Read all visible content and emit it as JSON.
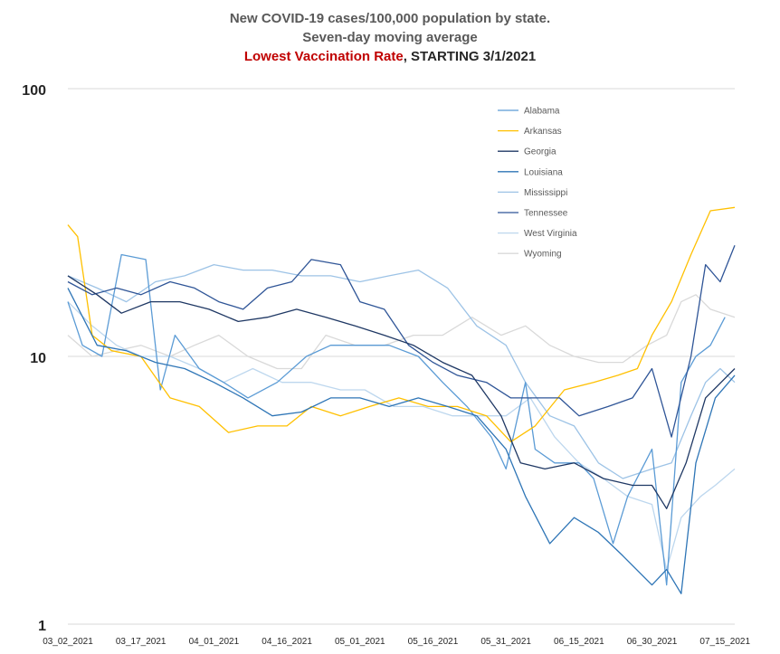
{
  "chart_data": {
    "type": "line",
    "title_line1": "New COVID-19 cases/100,000 population by state.",
    "title_line2": "Seven-day moving average",
    "title_line3_red": "Lowest Vaccination Rate",
    "title_line3_rest": ", STARTING 3/1/2021",
    "y_scale": "log",
    "ylim": [
      1,
      100
    ],
    "y_ticks": [
      "100",
      "10",
      "1"
    ],
    "y_tick_values": [
      100,
      10,
      1
    ],
    "x_start": "03_02_2021",
    "x_end": "07_17_2021",
    "x_tick_labels": [
      "03_02_2021",
      "03_17_2021",
      "04_01_2021",
      "04_16_2021",
      "05_01_2021",
      "05_16_2021",
      "05_31_2021",
      "06_15_2021",
      "06_30_2021",
      "07_15_2021"
    ],
    "x_tick_dates": [
      "2021-03-02",
      "2021-03-17",
      "2021-04-01",
      "2021-04-16",
      "2021-05-01",
      "2021-05-16",
      "2021-05-31",
      "2021-06-15",
      "2021-06-30",
      "2021-07-15"
    ],
    "grid": "horizontal",
    "legend_position": "top-right",
    "series": [
      {
        "name": "Alabama",
        "color": "#5b9bd5",
        "points": [
          [
            "2021-03-02",
            16
          ],
          [
            "2021-03-05",
            11
          ],
          [
            "2021-03-09",
            10
          ],
          [
            "2021-03-13",
            24
          ],
          [
            "2021-03-18",
            23
          ],
          [
            "2021-03-21",
            7.5
          ],
          [
            "2021-03-24",
            12
          ],
          [
            "2021-03-29",
            9
          ],
          [
            "2021-04-03",
            8
          ],
          [
            "2021-04-08",
            7
          ],
          [
            "2021-04-14",
            8
          ],
          [
            "2021-04-20",
            10
          ],
          [
            "2021-04-25",
            11
          ],
          [
            "2021-05-01",
            11
          ],
          [
            "2021-05-07",
            11
          ],
          [
            "2021-05-13",
            10
          ],
          [
            "2021-05-18",
            8
          ],
          [
            "2021-05-23",
            6.5
          ],
          [
            "2021-05-28",
            5
          ],
          [
            "2021-05-31",
            3.8
          ],
          [
            "2021-06-04",
            8
          ],
          [
            "2021-06-06",
            4.5
          ],
          [
            "2021-06-10",
            4
          ],
          [
            "2021-06-15",
            4
          ],
          [
            "2021-06-18",
            3.5
          ],
          [
            "2021-06-22",
            2
          ],
          [
            "2021-06-25",
            3
          ],
          [
            "2021-06-30",
            4.5
          ],
          [
            "2021-07-03",
            1.4
          ],
          [
            "2021-07-06",
            8
          ],
          [
            "2021-07-09",
            10
          ],
          [
            "2021-07-12",
            11
          ],
          [
            "2021-07-15",
            14
          ]
        ]
      },
      {
        "name": "Arkansas",
        "color": "#ffc000",
        "points": [
          [
            "2021-03-02",
            31
          ],
          [
            "2021-03-04",
            28
          ],
          [
            "2021-03-07",
            12
          ],
          [
            "2021-03-11",
            10.5
          ],
          [
            "2021-03-17",
            10
          ],
          [
            "2021-03-23",
            7
          ],
          [
            "2021-03-29",
            6.5
          ],
          [
            "2021-04-04",
            5.2
          ],
          [
            "2021-04-10",
            5.5
          ],
          [
            "2021-04-16",
            5.5
          ],
          [
            "2021-04-21",
            6.5
          ],
          [
            "2021-04-27",
            6
          ],
          [
            "2021-05-03",
            6.5
          ],
          [
            "2021-05-09",
            7
          ],
          [
            "2021-05-15",
            6.5
          ],
          [
            "2021-05-21",
            6.5
          ],
          [
            "2021-05-27",
            6
          ],
          [
            "2021-06-01",
            4.8
          ],
          [
            "2021-06-06",
            5.5
          ],
          [
            "2021-06-12",
            7.5
          ],
          [
            "2021-06-18",
            8
          ],
          [
            "2021-06-23",
            8.5
          ],
          [
            "2021-06-27",
            9
          ],
          [
            "2021-06-30",
            12
          ],
          [
            "2021-07-04",
            16
          ],
          [
            "2021-07-08",
            24
          ],
          [
            "2021-07-12",
            35
          ],
          [
            "2021-07-17",
            36
          ]
        ]
      },
      {
        "name": "Georgia",
        "color": "#1f3864",
        "points": [
          [
            "2021-03-02",
            20
          ],
          [
            "2021-03-08",
            17
          ],
          [
            "2021-03-13",
            14.5
          ],
          [
            "2021-03-19",
            16
          ],
          [
            "2021-03-25",
            16
          ],
          [
            "2021-03-31",
            15
          ],
          [
            "2021-04-06",
            13.5
          ],
          [
            "2021-04-12",
            14
          ],
          [
            "2021-04-18",
            15
          ],
          [
            "2021-04-24",
            14
          ],
          [
            "2021-04-30",
            13
          ],
          [
            "2021-05-06",
            12
          ],
          [
            "2021-05-12",
            11
          ],
          [
            "2021-05-18",
            9.5
          ],
          [
            "2021-05-24",
            8.5
          ],
          [
            "2021-05-30",
            6
          ],
          [
            "2021-06-03",
            4
          ],
          [
            "2021-06-08",
            3.8
          ],
          [
            "2021-06-14",
            4
          ],
          [
            "2021-06-20",
            3.5
          ],
          [
            "2021-06-26",
            3.3
          ],
          [
            "2021-06-30",
            3.3
          ],
          [
            "2021-07-03",
            2.7
          ],
          [
            "2021-07-07",
            4
          ],
          [
            "2021-07-11",
            7
          ],
          [
            "2021-07-17",
            9
          ]
        ]
      },
      {
        "name": "Louisiana",
        "color": "#2e75b6",
        "points": [
          [
            "2021-03-02",
            18
          ],
          [
            "2021-03-08",
            11
          ],
          [
            "2021-03-14",
            10.5
          ],
          [
            "2021-03-20",
            9.5
          ],
          [
            "2021-03-26",
            9
          ],
          [
            "2021-04-01",
            8
          ],
          [
            "2021-04-07",
            7
          ],
          [
            "2021-04-13",
            6
          ],
          [
            "2021-04-19",
            6.2
          ],
          [
            "2021-04-25",
            7
          ],
          [
            "2021-05-01",
            7
          ],
          [
            "2021-05-07",
            6.5
          ],
          [
            "2021-05-13",
            7
          ],
          [
            "2021-05-19",
            6.5
          ],
          [
            "2021-05-25",
            6
          ],
          [
            "2021-05-31",
            4.5
          ],
          [
            "2021-06-04",
            3
          ],
          [
            "2021-06-09",
            2
          ],
          [
            "2021-06-14",
            2.5
          ],
          [
            "2021-06-19",
            2.2
          ],
          [
            "2021-06-24",
            1.8
          ],
          [
            "2021-06-30",
            1.4
          ],
          [
            "2021-07-03",
            1.6
          ],
          [
            "2021-07-06",
            1.3
          ],
          [
            "2021-07-09",
            4
          ],
          [
            "2021-07-13",
            7
          ],
          [
            "2021-07-17",
            8.5
          ]
        ]
      },
      {
        "name": "Mississippi",
        "color": "#9dc3e6",
        "points": [
          [
            "2021-03-02",
            20
          ],
          [
            "2021-03-08",
            18
          ],
          [
            "2021-03-14",
            16
          ],
          [
            "2021-03-20",
            19
          ],
          [
            "2021-03-26",
            20
          ],
          [
            "2021-04-01",
            22
          ],
          [
            "2021-04-07",
            21
          ],
          [
            "2021-04-13",
            21
          ],
          [
            "2021-04-19",
            20
          ],
          [
            "2021-04-25",
            20
          ],
          [
            "2021-05-01",
            19
          ],
          [
            "2021-05-07",
            20
          ],
          [
            "2021-05-13",
            21
          ],
          [
            "2021-05-19",
            18
          ],
          [
            "2021-05-25",
            13
          ],
          [
            "2021-05-31",
            11
          ],
          [
            "2021-06-04",
            8
          ],
          [
            "2021-06-09",
            6
          ],
          [
            "2021-06-14",
            5.5
          ],
          [
            "2021-06-19",
            4
          ],
          [
            "2021-06-24",
            3.5
          ],
          [
            "2021-06-30",
            3.8
          ],
          [
            "2021-07-04",
            4
          ],
          [
            "2021-07-08",
            6
          ],
          [
            "2021-07-11",
            8
          ],
          [
            "2021-07-14",
            9
          ],
          [
            "2021-07-17",
            8
          ]
        ]
      },
      {
        "name": "Tennessee",
        "color": "#2f5597",
        "points": [
          [
            "2021-03-02",
            19
          ],
          [
            "2021-03-07",
            17
          ],
          [
            "2021-03-12",
            18
          ],
          [
            "2021-03-17",
            17
          ],
          [
            "2021-03-23",
            19
          ],
          [
            "2021-03-28",
            18
          ],
          [
            "2021-04-02",
            16
          ],
          [
            "2021-04-07",
            15
          ],
          [
            "2021-04-12",
            18
          ],
          [
            "2021-04-17",
            19
          ],
          [
            "2021-04-21",
            23
          ],
          [
            "2021-04-27",
            22
          ],
          [
            "2021-05-01",
            16
          ],
          [
            "2021-05-06",
            15
          ],
          [
            "2021-05-11",
            11
          ],
          [
            "2021-05-16",
            9.5
          ],
          [
            "2021-05-21",
            8.5
          ],
          [
            "2021-05-27",
            8
          ],
          [
            "2021-06-01",
            7
          ],
          [
            "2021-06-06",
            7
          ],
          [
            "2021-06-11",
            7
          ],
          [
            "2021-06-15",
            6
          ],
          [
            "2021-06-21",
            6.5
          ],
          [
            "2021-06-26",
            7
          ],
          [
            "2021-06-30",
            9
          ],
          [
            "2021-07-04",
            5
          ],
          [
            "2021-07-08",
            10
          ],
          [
            "2021-07-11",
            22
          ],
          [
            "2021-07-14",
            19
          ],
          [
            "2021-07-17",
            26
          ]
        ]
      },
      {
        "name": "West Virginia",
        "color": "#bdd7ee",
        "points": [
          [
            "2021-03-02",
            16
          ],
          [
            "2021-03-07",
            13
          ],
          [
            "2021-03-12",
            11
          ],
          [
            "2021-03-17",
            10
          ],
          [
            "2021-03-23",
            10
          ],
          [
            "2021-03-29",
            9
          ],
          [
            "2021-04-03",
            8
          ],
          [
            "2021-04-09",
            9
          ],
          [
            "2021-04-15",
            8
          ],
          [
            "2021-04-21",
            8
          ],
          [
            "2021-04-27",
            7.5
          ],
          [
            "2021-05-02",
            7.5
          ],
          [
            "2021-05-08",
            6.5
          ],
          [
            "2021-05-14",
            6.5
          ],
          [
            "2021-05-20",
            6
          ],
          [
            "2021-05-26",
            6
          ],
          [
            "2021-05-31",
            6
          ],
          [
            "2021-06-05",
            7
          ],
          [
            "2021-06-10",
            5
          ],
          [
            "2021-06-15",
            4
          ],
          [
            "2021-06-20",
            3.5
          ],
          [
            "2021-06-25",
            3
          ],
          [
            "2021-06-30",
            2.8
          ],
          [
            "2021-07-03",
            1.6
          ],
          [
            "2021-07-06",
            2.5
          ],
          [
            "2021-07-10",
            3
          ],
          [
            "2021-07-13",
            3.3
          ],
          [
            "2021-07-17",
            3.8
          ]
        ]
      },
      {
        "name": "Wyoming",
        "color": "#d9d9d9",
        "points": [
          [
            "2021-03-02",
            12
          ],
          [
            "2021-03-07",
            10
          ],
          [
            "2021-03-12",
            10.5
          ],
          [
            "2021-03-17",
            11
          ],
          [
            "2021-03-23",
            10
          ],
          [
            "2021-03-28",
            11
          ],
          [
            "2021-04-02",
            12
          ],
          [
            "2021-04-08",
            10
          ],
          [
            "2021-04-14",
            9
          ],
          [
            "2021-04-19",
            9
          ],
          [
            "2021-04-24",
            12
          ],
          [
            "2021-04-30",
            11
          ],
          [
            "2021-05-06",
            11
          ],
          [
            "2021-05-12",
            12
          ],
          [
            "2021-05-18",
            12
          ],
          [
            "2021-05-24",
            14
          ],
          [
            "2021-05-30",
            12
          ],
          [
            "2021-06-04",
            13
          ],
          [
            "2021-06-09",
            11
          ],
          [
            "2021-06-14",
            10
          ],
          [
            "2021-06-19",
            9.5
          ],
          [
            "2021-06-24",
            9.5
          ],
          [
            "2021-06-29",
            11
          ],
          [
            "2021-07-03",
            12
          ],
          [
            "2021-07-06",
            16
          ],
          [
            "2021-07-09",
            17
          ],
          [
            "2021-07-12",
            15
          ],
          [
            "2021-07-17",
            14
          ]
        ]
      }
    ]
  }
}
